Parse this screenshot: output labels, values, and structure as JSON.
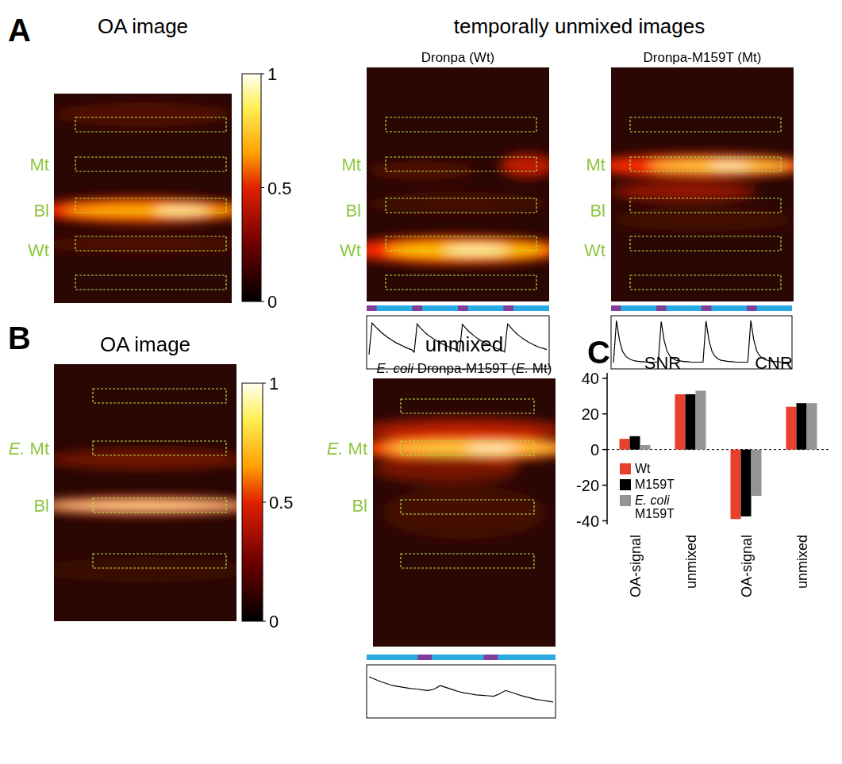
{
  "panel_a": {
    "label": "A",
    "oa_title": "OA image",
    "unmixed_title": "temporally unmixed images",
    "oa_row_labels": [
      "Mt",
      "Bl",
      "Wt"
    ],
    "unmixed_images": [
      {
        "title": "Dronpa (Wt)",
        "row_labels": [
          "Mt",
          "Bl",
          "Wt"
        ]
      },
      {
        "title": "Dronpa-M159T (Mt)",
        "row_labels": [
          "Mt",
          "Bl",
          "Wt"
        ]
      }
    ],
    "colorbar": {
      "range": [
        0,
        1
      ],
      "ticks": [
        0,
        0.5,
        1
      ]
    }
  },
  "panel_b": {
    "label": "B",
    "oa_title": "OA image",
    "unmixed_title": "unmixed",
    "unmixed_subtitle": "E. coli Dronpa-M159T (E. Mt)",
    "oa_row_labels": [
      "E. Mt",
      "Bl"
    ],
    "unmixed_row_labels": [
      "E. Mt",
      "Bl"
    ],
    "colorbar": {
      "range": [
        0,
        1
      ],
      "ticks": [
        0,
        0.5,
        1
      ]
    }
  },
  "panel_c": {
    "label": "C"
  },
  "chart_data": [
    {
      "type": "line",
      "tick_labels": false,
      "ylim": [
        0,
        1
      ],
      "color": "#000000",
      "values": [
        0.25,
        0.9,
        0.83,
        0.77,
        0.71,
        0.66,
        0.61,
        0.57,
        0.53,
        0.49,
        0.46,
        0.43,
        0.4,
        0.37,
        0.35,
        0.3,
        0.88,
        0.8,
        0.74,
        0.68,
        0.63,
        0.59,
        0.55,
        0.51,
        0.48,
        0.45,
        0.42,
        0.39,
        0.37,
        0.35,
        0.3,
        0.87,
        0.8,
        0.73,
        0.68,
        0.63,
        0.58,
        0.54,
        0.5,
        0.47,
        0.44,
        0.41,
        0.38,
        0.36,
        0.34,
        0.3,
        0.88,
        0.81,
        0.74,
        0.68,
        0.63,
        0.58,
        0.54,
        0.5,
        0.47,
        0.44,
        0.41,
        0.39,
        0.37,
        0.35
      ]
    },
    {
      "type": "line",
      "tick_labels": false,
      "ylim": [
        0,
        1
      ],
      "color": "#000000",
      "values": [
        0.08,
        0.95,
        0.55,
        0.32,
        0.22,
        0.17,
        0.14,
        0.12,
        0.11,
        0.1,
        0.1,
        0.09,
        0.09,
        0.09,
        0.09,
        0.09,
        0.93,
        0.53,
        0.31,
        0.21,
        0.16,
        0.13,
        0.12,
        0.11,
        0.1,
        0.1,
        0.09,
        0.09,
        0.09,
        0.09,
        0.09,
        0.94,
        0.54,
        0.31,
        0.21,
        0.16,
        0.13,
        0.12,
        0.11,
        0.1,
        0.1,
        0.09,
        0.09,
        0.09,
        0.09,
        0.09,
        0.95,
        0.55,
        0.32,
        0.22,
        0.17,
        0.14,
        0.12,
        0.11,
        0.1,
        0.1,
        0.09,
        0.09,
        0.09,
        0.09
      ]
    },
    {
      "type": "line",
      "tick_labels": false,
      "ylim": [
        0,
        1
      ],
      "color": "#000000",
      "values": [
        0.8,
        0.75,
        0.7,
        0.66,
        0.62,
        0.6,
        0.58,
        0.56,
        0.55,
        0.53,
        0.52,
        0.55,
        0.62,
        0.58,
        0.54,
        0.5,
        0.47,
        0.45,
        0.43,
        0.42,
        0.41,
        0.4,
        0.45,
        0.52,
        0.48,
        0.44,
        0.4,
        0.37,
        0.34,
        0.32,
        0.3,
        0.28
      ]
    },
    {
      "type": "bar",
      "categories": [
        "OA-signal",
        "unmixed",
        "OA-signal",
        "unmixed"
      ],
      "group_labels": [
        "SNR",
        "CNR"
      ],
      "ylim": [
        -42,
        43
      ],
      "yticks": [
        -40,
        -20,
        0,
        20,
        40
      ],
      "legend": "bottom-left",
      "series": [
        {
          "name": "Wt",
          "color": "#e8402a",
          "values": [
            6,
            31,
            -39,
            24
          ]
        },
        {
          "name": "M159T",
          "color": "#000000",
          "values": [
            7.5,
            31,
            -37.5,
            26
          ]
        },
        {
          "name": "E. coli M159T",
          "color": "#939598",
          "values": [
            2.5,
            33,
            -26,
            26
          ]
        }
      ]
    }
  ]
}
